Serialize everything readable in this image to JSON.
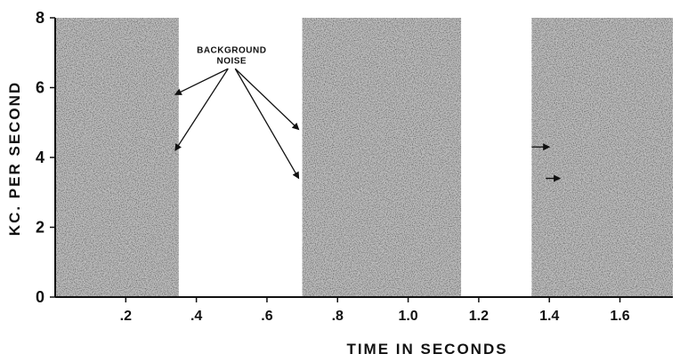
{
  "chart_data": {
    "type": "spectrogram",
    "xlabel": "TIME IN SECONDS",
    "ylabel": "KC. PER SECOND",
    "xlim": [
      0.0,
      1.75
    ],
    "ylim": [
      0,
      8
    ],
    "x_ticks": [
      0.2,
      0.4,
      0.6,
      0.8,
      1.0,
      1.2,
      1.4,
      1.6
    ],
    "x_tick_labels": [
      ".2",
      ".4",
      ".6",
      ".8",
      "1.0",
      "1.2",
      "1.4",
      "1.6"
    ],
    "y_ticks": [
      0,
      2,
      4,
      6,
      8
    ],
    "y_tick_labels": [
      "0",
      "2",
      "4",
      "6",
      "8"
    ],
    "grid": false,
    "segments": [
      {
        "x_start": 0.0,
        "x_end": 0.35
      },
      {
        "x_start": 0.7,
        "x_end": 1.15
      },
      {
        "x_start": 1.35,
        "x_end": 1.75
      }
    ],
    "annotation": {
      "lines": [
        "BACKGROUND",
        "NOISE"
      ],
      "anchor_x": 0.5,
      "anchor_y": 7.0,
      "arrow_targets": [
        {
          "x": 0.34,
          "y": 5.8
        },
        {
          "x": 0.34,
          "y": 4.2
        },
        {
          "x": 0.69,
          "y": 4.8
        },
        {
          "x": 0.69,
          "y": 3.4
        }
      ]
    },
    "side_markers": [
      {
        "x_from": 1.35,
        "x_to": 1.4,
        "y": 4.3
      },
      {
        "x_from": 1.39,
        "x_to": 1.43,
        "y": 3.4
      }
    ],
    "colors": {
      "ink": "#111111",
      "background": "#ffffff",
      "panel": "#bdbdbd"
    }
  }
}
